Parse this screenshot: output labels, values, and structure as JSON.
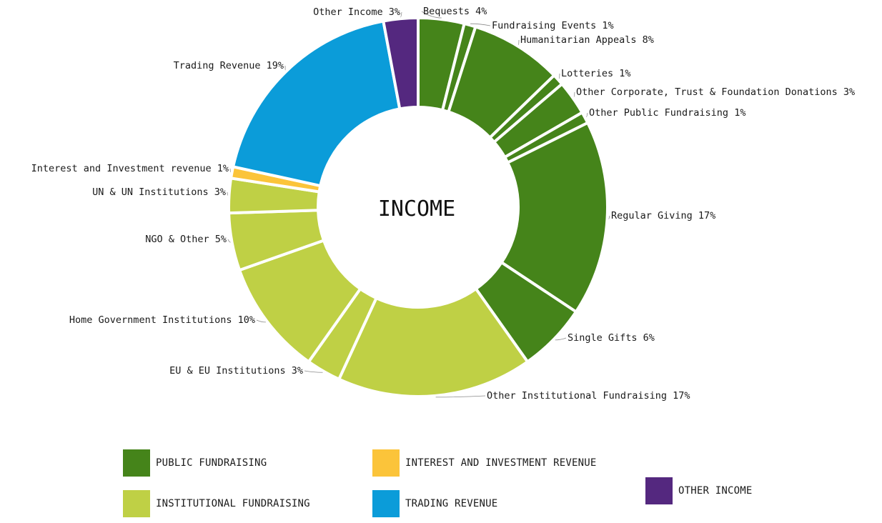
{
  "chart_data": {
    "type": "pie",
    "title": "INCOME",
    "legend": [
      {
        "key": "public",
        "label": "PUBLIC FUNDRAISING",
        "color": "#45841a"
      },
      {
        "key": "institutional",
        "label": "INSTITUTIONAL FUNDRAISING",
        "color": "#bfd045"
      },
      {
        "key": "interest",
        "label": "INTEREST AND INVESTMENT REVENUE",
        "color": "#fbc43a"
      },
      {
        "key": "trading",
        "label": "TRADING REVENUE",
        "color": "#0b9cd9"
      },
      {
        "key": "other",
        "label": "OTHER INCOME",
        "color": "#54287f"
      }
    ],
    "slices": [
      {
        "label": "Bequests 4%",
        "value": 4,
        "group": "public"
      },
      {
        "label": "Fundraising Events 1%",
        "value": 1,
        "group": "public"
      },
      {
        "label": "Humanitarian Appeals 8%",
        "value": 8,
        "group": "public"
      },
      {
        "label": "Lotteries 1%",
        "value": 1,
        "group": "public"
      },
      {
        "label": "Other Corporate, Trust & Foundation Donations 3%",
        "value": 3,
        "group": "public"
      },
      {
        "label": "Other Public Fundraising 1%",
        "value": 1,
        "group": "public"
      },
      {
        "label": "Regular Giving 17%",
        "value": 17,
        "group": "public"
      },
      {
        "label": "Single Gifts 6%",
        "value": 6,
        "group": "public"
      },
      {
        "label": "Other Institutional Fundraising 17%",
        "value": 17,
        "group": "institutional"
      },
      {
        "label": "EU & EU Institutions 3%",
        "value": 3,
        "group": "institutional"
      },
      {
        "label": "Home Government Institutions 10%",
        "value": 10,
        "group": "institutional"
      },
      {
        "label": "NGO & Other 5%",
        "value": 5,
        "group": "institutional"
      },
      {
        "label": "UN & UN Institutions 3%",
        "value": 3,
        "group": "institutional"
      },
      {
        "label": "Interest and Investment revenue 1%",
        "value": 1,
        "group": "interest"
      },
      {
        "label": "Trading Revenue 19%",
        "value": 19,
        "group": "trading"
      },
      {
        "label": "Other Income 3%",
        "value": 3,
        "group": "other"
      }
    ]
  }
}
